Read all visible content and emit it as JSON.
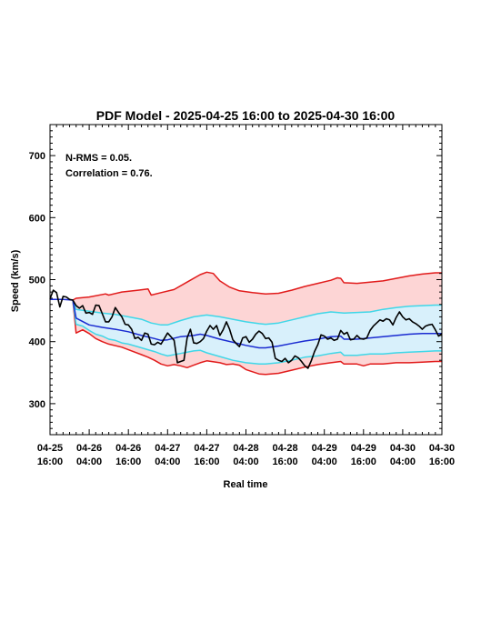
{
  "chart_data": {
    "type": "line",
    "title": "PDF Model - 2025-04-25 16:00 to 2025-04-30 16:00",
    "xlabel": "Real time",
    "ylabel": "Speed (km/s)",
    "xlim": [
      0,
      120
    ],
    "ylim": [
      250,
      750
    ],
    "yticks": [
      300,
      400,
      500,
      600,
      700
    ],
    "xticks": [
      {
        "x": 0,
        "label": [
          "04-25",
          "16:00"
        ]
      },
      {
        "x": 12,
        "label": [
          "04-26",
          "04:00"
        ]
      },
      {
        "x": 24,
        "label": [
          "04-26",
          "16:00"
        ]
      },
      {
        "x": 36,
        "label": [
          "04-27",
          "04:00"
        ]
      },
      {
        "x": 48,
        "label": [
          "04-27",
          "16:00"
        ]
      },
      {
        "x": 60,
        "label": [
          "04-28",
          "04:00"
        ]
      },
      {
        "x": 72,
        "label": [
          "04-28",
          "16:00"
        ]
      },
      {
        "x": 84,
        "label": [
          "04-29",
          "04:00"
        ]
      },
      {
        "x": 96,
        "label": [
          "04-29",
          "16:00"
        ]
      },
      {
        "x": 108,
        "label": [
          "04-30",
          "04:00"
        ]
      },
      {
        "x": 120,
        "label": [
          "04-30",
          "16:00"
        ]
      }
    ],
    "annotations": [
      "N-RMS = 0.05.",
      "Correlation = 0.76."
    ],
    "colors": {
      "outer_fill": "#fdd5d5",
      "inner_fill": "#d8f0fb",
      "outer_line": "#e11b1b",
      "inner_line": "#3fd7e8",
      "model_line": "#1a2bd1",
      "observed_line": "#000000"
    },
    "series": [
      {
        "role": "outer_upper",
        "color": "#e11b1b",
        "points": [
          [
            7,
            467
          ],
          [
            8,
            470
          ],
          [
            12,
            472
          ],
          [
            17,
            477
          ],
          [
            18,
            475
          ],
          [
            22,
            480
          ],
          [
            27,
            483
          ],
          [
            30,
            485
          ],
          [
            31,
            475
          ],
          [
            34,
            479
          ],
          [
            38,
            484
          ],
          [
            42,
            496
          ],
          [
            46,
            508
          ],
          [
            48,
            512
          ],
          [
            50,
            510
          ],
          [
            52,
            498
          ],
          [
            55,
            488
          ],
          [
            58,
            482
          ],
          [
            62,
            479
          ],
          [
            66,
            477
          ],
          [
            70,
            478
          ],
          [
            74,
            483
          ],
          [
            78,
            489
          ],
          [
            82,
            494
          ],
          [
            86,
            499
          ],
          [
            88,
            503
          ],
          [
            89,
            502
          ],
          [
            90,
            495
          ],
          [
            94,
            494
          ],
          [
            98,
            496
          ],
          [
            102,
            498
          ],
          [
            106,
            502
          ],
          [
            110,
            506
          ],
          [
            114,
            509
          ],
          [
            118,
            511
          ],
          [
            120,
            511
          ]
        ]
      },
      {
        "role": "inner_upper",
        "color": "#3fd7e8",
        "points": [
          [
            7,
            466
          ],
          [
            8,
            452
          ],
          [
            12,
            449
          ],
          [
            16,
            446
          ],
          [
            20,
            444
          ],
          [
            24,
            440
          ],
          [
            28,
            436
          ],
          [
            31,
            430
          ],
          [
            34,
            427
          ],
          [
            36,
            427
          ],
          [
            40,
            434
          ],
          [
            44,
            440
          ],
          [
            48,
            443
          ],
          [
            52,
            440
          ],
          [
            56,
            436
          ],
          [
            60,
            432
          ],
          [
            64,
            429
          ],
          [
            66,
            428
          ],
          [
            70,
            430
          ],
          [
            74,
            435
          ],
          [
            78,
            440
          ],
          [
            82,
            445
          ],
          [
            86,
            448
          ],
          [
            90,
            446
          ],
          [
            94,
            447
          ],
          [
            98,
            448
          ],
          [
            102,
            452
          ],
          [
            106,
            455
          ],
          [
            110,
            457
          ],
          [
            114,
            458
          ],
          [
            118,
            459
          ],
          [
            120,
            459
          ]
        ]
      },
      {
        "role": "model",
        "color": "#1a2bd1",
        "points": [
          [
            0,
            468
          ],
          [
            4,
            468
          ],
          [
            7,
            467
          ],
          [
            8,
            438
          ],
          [
            12,
            427
          ],
          [
            16,
            423
          ],
          [
            20,
            420
          ],
          [
            24,
            416
          ],
          [
            28,
            410
          ],
          [
            32,
            405
          ],
          [
            34,
            402
          ],
          [
            36,
            403
          ],
          [
            40,
            408
          ],
          [
            44,
            410
          ],
          [
            46,
            412
          ],
          [
            48,
            410
          ],
          [
            52,
            404
          ],
          [
            56,
            399
          ],
          [
            60,
            394
          ],
          [
            64,
            390
          ],
          [
            66,
            390
          ],
          [
            70,
            393
          ],
          [
            74,
            397
          ],
          [
            78,
            401
          ],
          [
            82,
            404
          ],
          [
            86,
            408
          ],
          [
            89,
            409
          ],
          [
            90,
            404
          ],
          [
            94,
            404
          ],
          [
            98,
            406
          ],
          [
            102,
            408
          ],
          [
            106,
            410
          ],
          [
            110,
            412
          ],
          [
            114,
            413
          ],
          [
            118,
            413
          ],
          [
            120,
            413
          ]
        ]
      },
      {
        "role": "inner_lower",
        "color": "#3fd7e8",
        "points": [
          [
            7,
            466
          ],
          [
            8,
            428
          ],
          [
            10,
            425
          ],
          [
            12,
            418
          ],
          [
            14,
            412
          ],
          [
            16,
            409
          ],
          [
            18,
            404
          ],
          [
            20,
            402
          ],
          [
            22,
            398
          ],
          [
            24,
            396
          ],
          [
            28,
            390
          ],
          [
            30,
            387
          ],
          [
            32,
            384
          ],
          [
            34,
            380
          ],
          [
            36,
            377
          ],
          [
            40,
            381
          ],
          [
            44,
            385
          ],
          [
            46,
            386
          ],
          [
            48,
            382
          ],
          [
            52,
            376
          ],
          [
            56,
            370
          ],
          [
            60,
            366
          ],
          [
            64,
            364
          ],
          [
            66,
            364
          ],
          [
            70,
            366
          ],
          [
            74,
            370
          ],
          [
            78,
            375
          ],
          [
            82,
            377
          ],
          [
            86,
            381
          ],
          [
            89,
            383
          ],
          [
            90,
            378
          ],
          [
            94,
            378
          ],
          [
            98,
            380
          ],
          [
            102,
            380
          ],
          [
            106,
            382
          ],
          [
            110,
            383
          ],
          [
            114,
            384
          ],
          [
            118,
            385
          ],
          [
            120,
            385
          ]
        ]
      },
      {
        "role": "outer_lower",
        "color": "#e11b1b",
        "points": [
          [
            7,
            466
          ],
          [
            8,
            414
          ],
          [
            10,
            419
          ],
          [
            12,
            413
          ],
          [
            14,
            405
          ],
          [
            16,
            400
          ],
          [
            18,
            396
          ],
          [
            22,
            391
          ],
          [
            24,
            387
          ],
          [
            28,
            379
          ],
          [
            30,
            375
          ],
          [
            32,
            370
          ],
          [
            34,
            364
          ],
          [
            36,
            361
          ],
          [
            38,
            363
          ],
          [
            40,
            361
          ],
          [
            42,
            358
          ],
          [
            44,
            362
          ],
          [
            46,
            366
          ],
          [
            48,
            369
          ],
          [
            52,
            366
          ],
          [
            54,
            363
          ],
          [
            56,
            364
          ],
          [
            58,
            362
          ],
          [
            60,
            355
          ],
          [
            64,
            348
          ],
          [
            66,
            347
          ],
          [
            70,
            349
          ],
          [
            74,
            354
          ],
          [
            78,
            359
          ],
          [
            82,
            363
          ],
          [
            86,
            366
          ],
          [
            89,
            368
          ],
          [
            90,
            364
          ],
          [
            94,
            364
          ],
          [
            96,
            361
          ],
          [
            98,
            364
          ],
          [
            102,
            364
          ],
          [
            106,
            366
          ],
          [
            110,
            366
          ],
          [
            114,
            367
          ],
          [
            118,
            368
          ],
          [
            120,
            368
          ]
        ]
      },
      {
        "role": "observed",
        "color": "#000000",
        "points": [
          [
            0,
            469
          ],
          [
            1,
            483
          ],
          [
            2,
            479
          ],
          [
            3,
            456
          ],
          [
            4,
            473
          ],
          [
            5,
            472
          ],
          [
            6,
            468
          ],
          [
            7,
            467
          ],
          [
            8,
            458
          ],
          [
            9,
            454
          ],
          [
            10,
            458
          ],
          [
            11,
            446
          ],
          [
            12,
            447
          ],
          [
            13,
            444
          ],
          [
            14,
            459
          ],
          [
            15,
            458
          ],
          [
            16,
            445
          ],
          [
            17,
            432
          ],
          [
            18,
            432
          ],
          [
            19,
            440
          ],
          [
            20,
            455
          ],
          [
            21,
            447
          ],
          [
            22,
            440
          ],
          [
            23,
            428
          ],
          [
            24,
            427
          ],
          [
            25,
            420
          ],
          [
            26,
            405
          ],
          [
            27,
            407
          ],
          [
            28,
            402
          ],
          [
            29,
            414
          ],
          [
            30,
            412
          ],
          [
            31,
            396
          ],
          [
            32,
            395
          ],
          [
            33,
            399
          ],
          [
            34,
            396
          ],
          [
            35,
            405
          ],
          [
            36,
            414
          ],
          [
            37,
            408
          ],
          [
            38,
            402
          ],
          [
            39,
            366
          ],
          [
            40,
            368
          ],
          [
            41,
            370
          ],
          [
            42,
            406
          ],
          [
            43,
            420
          ],
          [
            44,
            398
          ],
          [
            45,
            397
          ],
          [
            46,
            400
          ],
          [
            47,
            405
          ],
          [
            48,
            417
          ],
          [
            49,
            426
          ],
          [
            50,
            420
          ],
          [
            51,
            426
          ],
          [
            52,
            410
          ],
          [
            53,
            419
          ],
          [
            54,
            432
          ],
          [
            55,
            420
          ],
          [
            56,
            403
          ],
          [
            57,
            397
          ],
          [
            58,
            392
          ],
          [
            59,
            406
          ],
          [
            60,
            408
          ],
          [
            61,
            399
          ],
          [
            62,
            404
          ],
          [
            63,
            412
          ],
          [
            64,
            417
          ],
          [
            65,
            413
          ],
          [
            66,
            405
          ],
          [
            67,
            406
          ],
          [
            68,
            399
          ],
          [
            69,
            373
          ],
          [
            70,
            370
          ],
          [
            71,
            368
          ],
          [
            72,
            373
          ],
          [
            73,
            366
          ],
          [
            74,
            370
          ],
          [
            75,
            377
          ],
          [
            76,
            374
          ],
          [
            77,
            368
          ],
          [
            78,
            361
          ],
          [
            79,
            357
          ],
          [
            80,
            369
          ],
          [
            81,
            384
          ],
          [
            82,
            395
          ],
          [
            83,
            411
          ],
          [
            84,
            409
          ],
          [
            85,
            404
          ],
          [
            86,
            406
          ],
          [
            87,
            402
          ],
          [
            88,
            404
          ],
          [
            89,
            418
          ],
          [
            90,
            412
          ],
          [
            91,
            415
          ],
          [
            92,
            403
          ],
          [
            93,
            404
          ],
          [
            94,
            410
          ],
          [
            95,
            405
          ],
          [
            96,
            404
          ],
          [
            97,
            406
          ],
          [
            98,
            418
          ],
          [
            99,
            425
          ],
          [
            100,
            430
          ],
          [
            101,
            435
          ],
          [
            102,
            433
          ],
          [
            103,
            437
          ],
          [
            104,
            435
          ],
          [
            105,
            427
          ],
          [
            106,
            439
          ],
          [
            107,
            448
          ],
          [
            108,
            440
          ],
          [
            109,
            435
          ],
          [
            110,
            437
          ],
          [
            111,
            432
          ],
          [
            112,
            429
          ],
          [
            113,
            425
          ],
          [
            114,
            420
          ],
          [
            115,
            425
          ],
          [
            116,
            427
          ],
          [
            117,
            428
          ],
          [
            118,
            419
          ],
          [
            119,
            409
          ],
          [
            120,
            413
          ]
        ]
      }
    ]
  }
}
